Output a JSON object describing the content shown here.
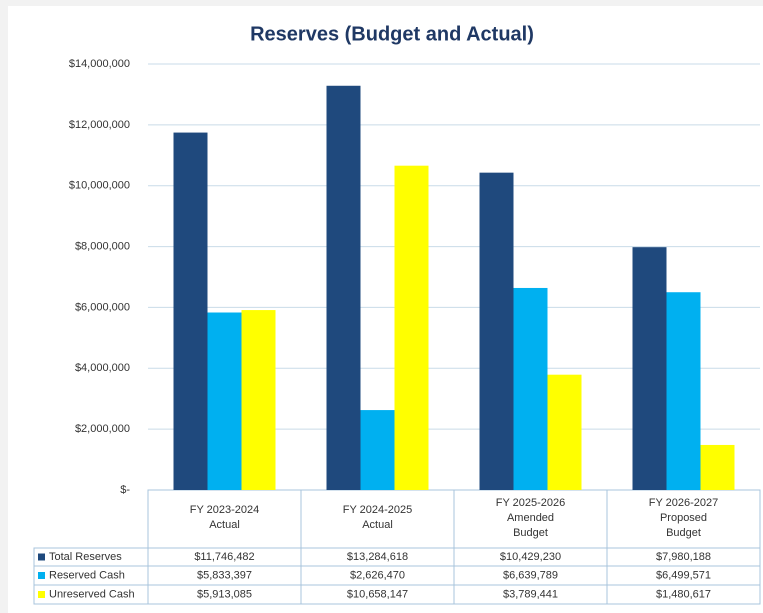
{
  "chart_data": {
    "type": "bar",
    "title": "Reserves (Budget and Actual)",
    "categories": [
      [
        "FY 2023-2024",
        "Actual"
      ],
      [
        "FY 2024-2025",
        "Actual"
      ],
      [
        "FY 2025-2026",
        "Amended",
        "Budget"
      ],
      [
        "FY 2026-2027",
        "Proposed",
        "Budget"
      ]
    ],
    "series": [
      {
        "name": "Total Reserves",
        "color": "#1f497d",
        "values": [
          11746482,
          13284618,
          10429230,
          7980188
        ],
        "value_labels": [
          "$11,746,482",
          "$13,284,618",
          "$10,429,230",
          "$7,980,188"
        ]
      },
      {
        "name": "Reserved Cash",
        "color": "#00b0f0",
        "values": [
          5833397,
          2626470,
          6639789,
          6499571
        ],
        "value_labels": [
          "$5,833,397",
          "$2,626,470",
          "$6,639,789",
          "$6,499,571"
        ]
      },
      {
        "name": "Unreserved Cash",
        "color": "#ffff00",
        "values": [
          5913085,
          10658147,
          3789441,
          1480617
        ],
        "value_labels": [
          "$5,913,085",
          "$10,658,147",
          "$3,789,441",
          "$1,480,617"
        ]
      }
    ],
    "ylim": [
      0,
      14000000
    ],
    "yticks": [
      {
        "value": 0,
        "label": "$-"
      },
      {
        "value": 2000000,
        "label": "$2,000,000"
      },
      {
        "value": 4000000,
        "label": "$4,000,000"
      },
      {
        "value": 6000000,
        "label": "$6,000,000"
      },
      {
        "value": 8000000,
        "label": "$8,000,000"
      },
      {
        "value": 10000000,
        "label": "$10,000,000"
      },
      {
        "value": 12000000,
        "label": "$12,000,000"
      },
      {
        "value": 14000000,
        "label": "$14,000,000"
      }
    ],
    "grid": true
  }
}
